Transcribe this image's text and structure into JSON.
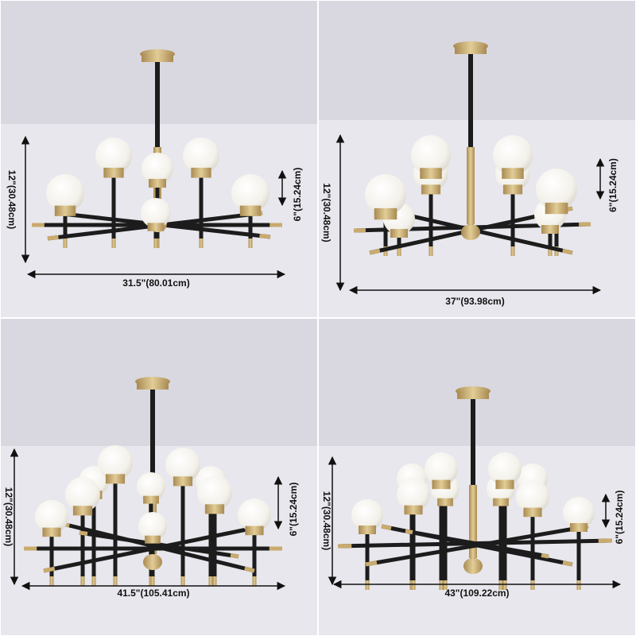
{
  "panels": [
    {
      "width_label": "31.5\"(80.01cm)",
      "height_label": "12\"(30.48cm)",
      "drop_label": "6\"(15.24cm)"
    },
    {
      "width_label": "37\"(93.98cm)",
      "height_label": "12\"(30.48cm)",
      "drop_label": "6\"(15.24cm)"
    },
    {
      "width_label": "41.5\"(105.41cm)",
      "height_label": "12\"(30.48cm)",
      "drop_label": "6\"(15.24cm)"
    },
    {
      "width_label": "43\"(109.22cm)",
      "height_label": "12\"(30.48cm)",
      "drop_label": "6\"(15.24cm)"
    }
  ]
}
